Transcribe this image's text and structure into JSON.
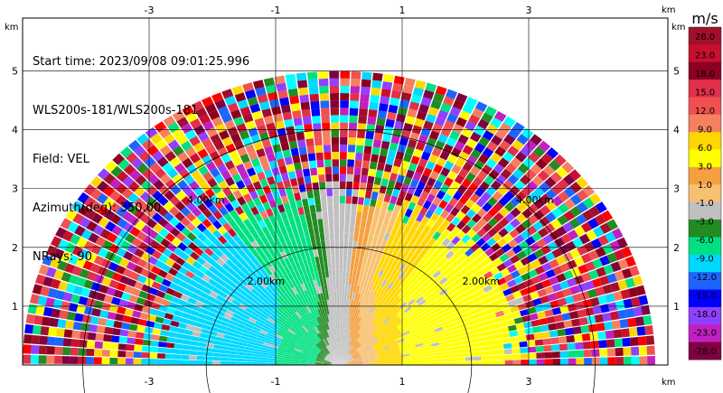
{
  "header_info": {
    "start_time": "Start time: 2023/09/08 09:01:25.996",
    "instrument": "WLS200s-181/WLS200s-181",
    "field": "Field: VEL",
    "azimuth": "Azimuth(deg): 350.00",
    "nrays": "NRays: 90"
  },
  "axes": {
    "x_unit": "km",
    "y_unit": "km",
    "x_tick_labels": [
      "-3",
      "-1",
      "1",
      "3"
    ],
    "y_tick_labels": [
      "1",
      "2",
      "3",
      "4",
      "5"
    ],
    "x_ticks": [
      -3,
      -1,
      1,
      3
    ],
    "y_ticks": [
      1,
      2,
      3,
      4,
      5
    ],
    "x_range": [
      -5,
      5.2
    ],
    "y_range": [
      0,
      5.9
    ]
  },
  "range_ring_labels": [
    "2.00km",
    "2.00km",
    "4.00km",
    "4.00km"
  ],
  "colorbar": {
    "unit": "m/s",
    "ticks": [
      "28.0",
      "23.0",
      "18.0",
      "15.0",
      "12.0",
      "9.0",
      "6.0",
      "3.0",
      "1.0",
      "-1.0",
      "-3.0",
      "-6.0",
      "-9.0",
      "-12.0",
      "-15.0",
      "-18.0",
      "-23.0",
      "-28.0"
    ],
    "colors": [
      "#a0102a",
      "#c8102e",
      "#8b0020",
      "#e0304a",
      "#f05050",
      "#f58060",
      "#ffd700",
      "#ffff00",
      "#f4a040",
      "#f7c070",
      "#c0c0c0",
      "#228b22",
      "#00e080",
      "#00d8ff",
      "#1e64ff",
      "#0000ff",
      "#9040ff",
      "#c020c0",
      "#800040"
    ]
  },
  "scan": {
    "max_range_km": 5.0,
    "n_rays": 90,
    "azimuth_deg": 350.0
  }
}
